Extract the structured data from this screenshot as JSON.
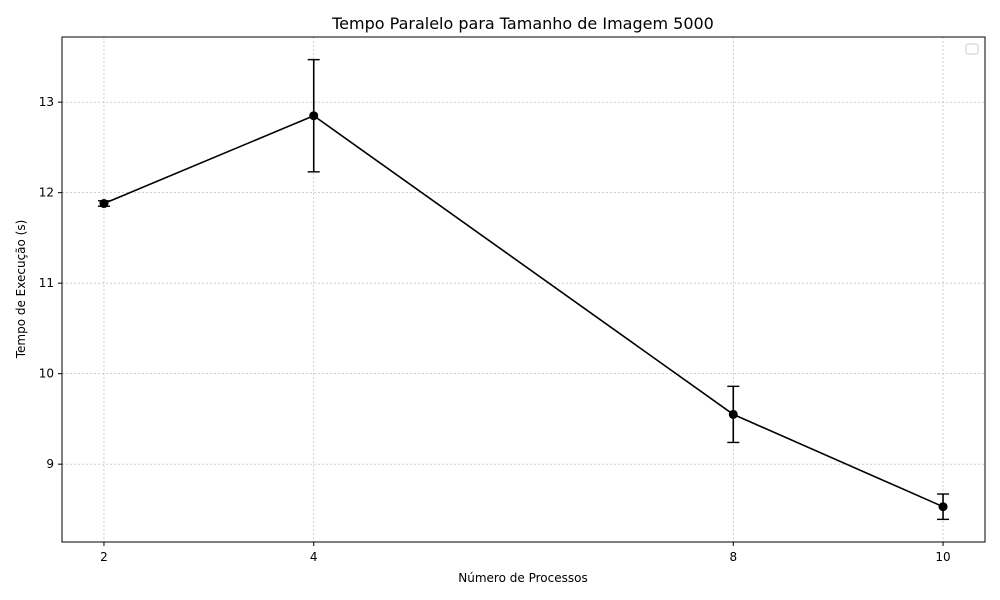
{
  "chart_data": {
    "type": "line",
    "title": "Tempo Paralelo para Tamanho de Imagem 5000",
    "xlabel": "Número de Processos",
    "ylabel": "Tempo de Execução (s)",
    "x": [
      2,
      4,
      8,
      10
    ],
    "series": [
      {
        "values": [
          11.88,
          12.85,
          9.55,
          8.53
        ],
        "error": [
          0.03,
          0.62,
          0.31,
          0.14
        ]
      }
    ],
    "xticks": [
      2,
      4,
      8,
      10
    ],
    "yticks": [
      9,
      10,
      11,
      12,
      13
    ],
    "xlim": [
      1.6,
      10.4
    ],
    "ylim": [
      8.14,
      13.72
    ],
    "grid": true,
    "legend": "top-right",
    "line_color": "#000000"
  }
}
